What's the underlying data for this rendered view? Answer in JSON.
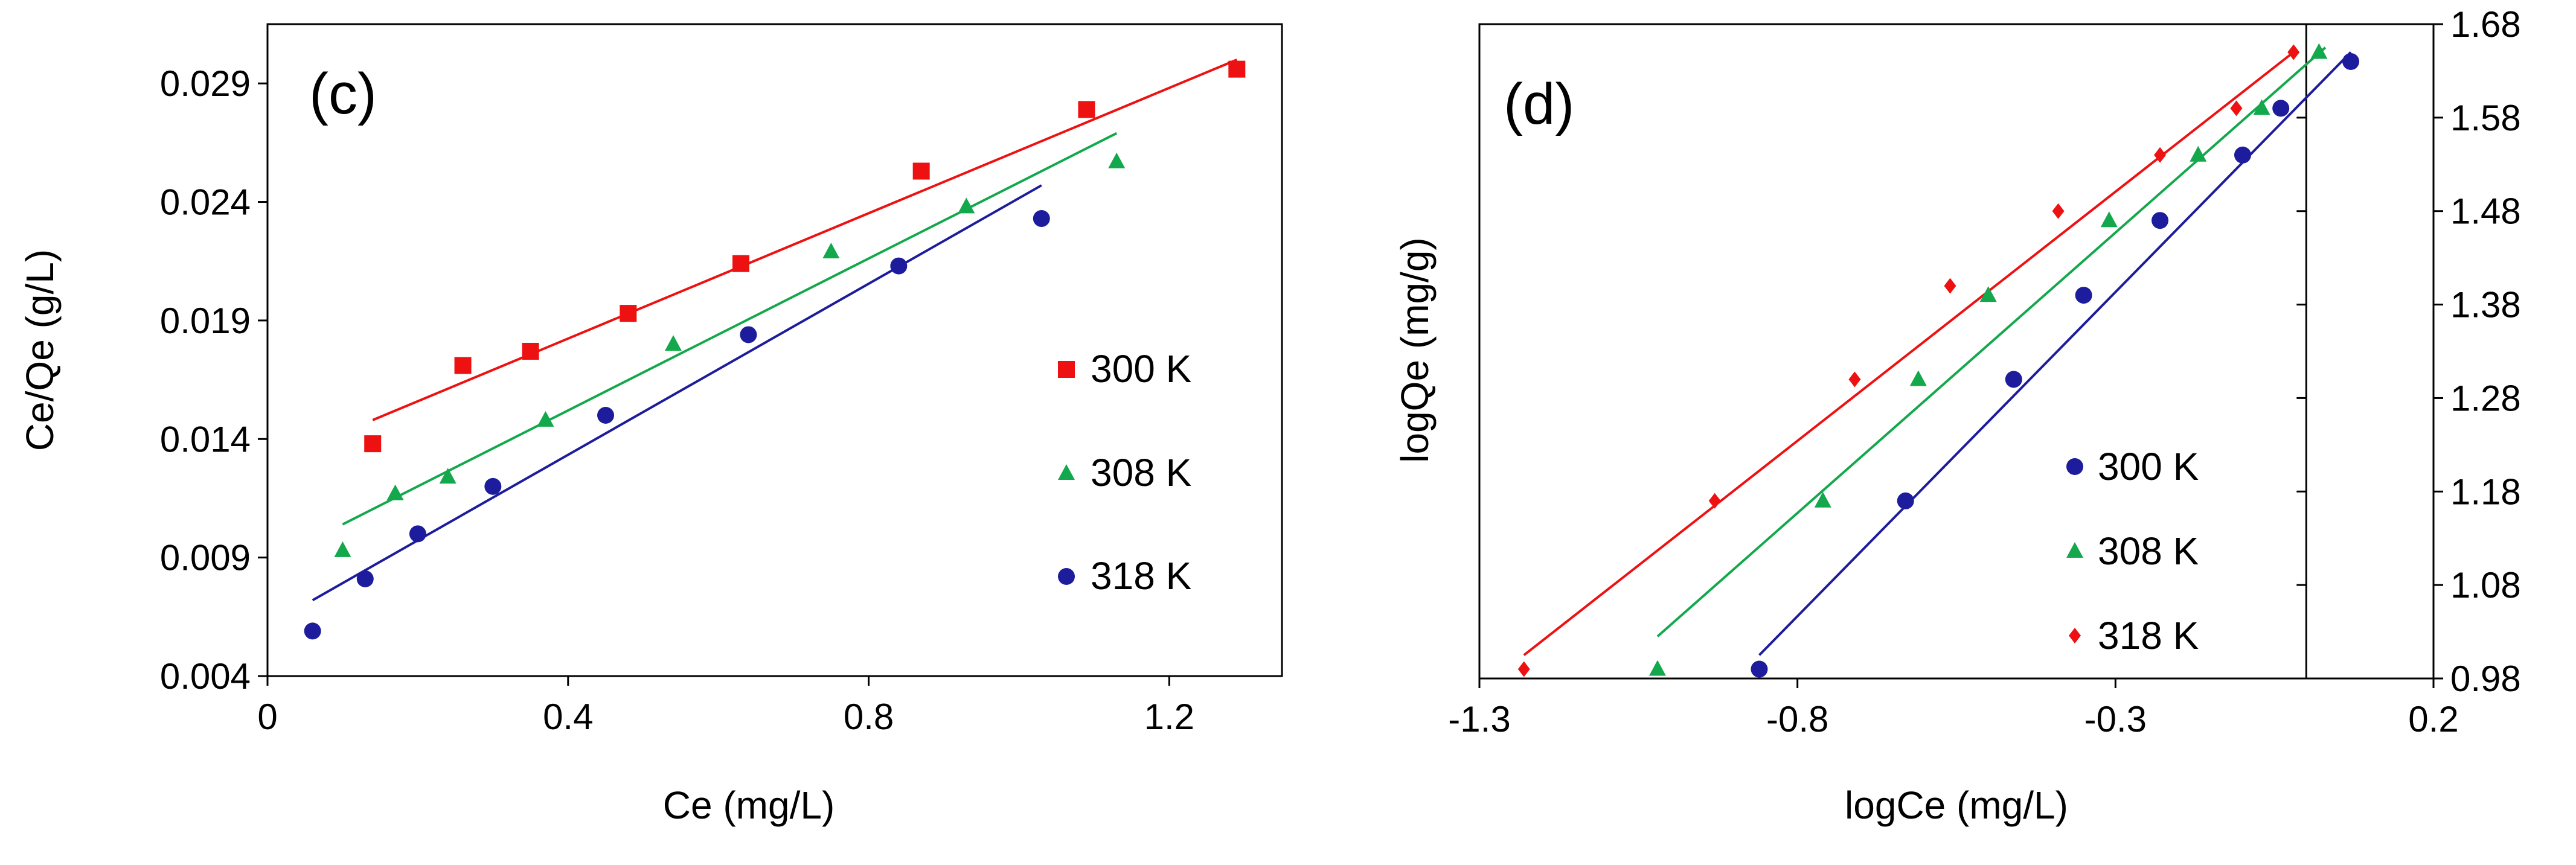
{
  "chart_data": [
    {
      "type": "scatter",
      "panel_label": "(c)",
      "xlabel": "Ce (mg/L)",
      "ylabel": "Ce/Qe (g/L)",
      "xlim": [
        0,
        1.35
      ],
      "ylim": [
        0.004,
        0.0315
      ],
      "x_ticks": [
        0,
        0.4,
        0.8,
        1.2
      ],
      "x_tick_labels": [
        "0",
        "0.4",
        "0.8",
        "1.2"
      ],
      "y_ticks": [
        0.004,
        0.009,
        0.014,
        0.019,
        0.024,
        0.029
      ],
      "y_tick_labels": [
        "0.004",
        "0.009",
        "0.014",
        "0.019",
        "0.024",
        "0.029"
      ],
      "legend_position": "right",
      "series": [
        {
          "name": "300 K",
          "color": "#ee1111",
          "marker": "square",
          "x": [
            0.14,
            0.26,
            0.35,
            0.48,
            0.63,
            0.87,
            1.09,
            1.29
          ],
          "y": [
            0.0138,
            0.0171,
            0.0177,
            0.0193,
            0.0214,
            0.0253,
            0.0279,
            0.0296
          ],
          "fit": [
            [
              0.14,
              0.0148
            ],
            [
              1.29,
              0.03
            ]
          ]
        },
        {
          "name": "308 K",
          "color": "#13a84c",
          "marker": "triangle",
          "x": [
            0.1,
            0.17,
            0.24,
            0.37,
            0.54,
            0.75,
            0.93,
            1.13
          ],
          "y": [
            0.0093,
            0.0117,
            0.0124,
            0.0148,
            0.018,
            0.0219,
            0.0238,
            0.0257
          ],
          "fit": [
            [
              0.1,
              0.0104
            ],
            [
              1.13,
              0.0269
            ]
          ]
        },
        {
          "name": "318 K",
          "color": "#1c1c9c",
          "marker": "circle",
          "x": [
            0.06,
            0.13,
            0.2,
            0.3,
            0.45,
            0.64,
            0.84,
            1.03
          ],
          "y": [
            0.0059,
            0.0081,
            0.01,
            0.012,
            0.015,
            0.0184,
            0.0213,
            0.0233
          ],
          "fit": [
            [
              0.06,
              0.0072
            ],
            [
              1.03,
              0.0247
            ]
          ]
        }
      ]
    },
    {
      "type": "scatter",
      "panel_label": "(d)",
      "xlabel": "logCe (mg/L)",
      "ylabel": "logQe (mg/g)",
      "xlim": [
        -1.3,
        0.2
      ],
      "ylim": [
        0.98,
        1.68
      ],
      "x_ticks": [
        -1.3,
        -0.8,
        -0.3,
        0.2
      ],
      "x_tick_labels": [
        "-1.3",
        "-0.8",
        "-0.3",
        "0.2"
      ],
      "y_ticks": [
        0.98,
        1.08,
        1.18,
        1.28,
        1.38,
        1.48,
        1.58,
        1.68
      ],
      "y_tick_labels": [
        "0.98",
        "1.08",
        "1.18",
        "1.28",
        "1.38",
        "1.48",
        "1.58",
        "1.68"
      ],
      "y_axis_side": "right",
      "y_axis_at_x": 0,
      "legend_position": "right",
      "series": [
        {
          "name": "300 K",
          "color": "#1c1c9c",
          "marker": "circle",
          "x": [
            -0.86,
            -0.63,
            -0.46,
            -0.35,
            -0.23,
            -0.1,
            -0.04,
            0.07
          ],
          "y": [
            0.99,
            1.17,
            1.3,
            1.39,
            1.47,
            1.54,
            1.59,
            1.64
          ],
          "fit": [
            [
              -0.86,
              1.005
            ],
            [
              0.07,
              1.65
            ]
          ]
        },
        {
          "name": "308 K",
          "color": "#13a84c",
          "marker": "triangle",
          "x": [
            -1.02,
            -0.76,
            -0.61,
            -0.5,
            -0.31,
            -0.17,
            -0.07,
            0.02
          ],
          "y": [
            0.99,
            1.17,
            1.3,
            1.39,
            1.47,
            1.54,
            1.59,
            1.65
          ],
          "fit": [
            [
              -1.02,
              1.025
            ],
            [
              0.03,
              1.655
            ]
          ]
        },
        {
          "name": "318 K",
          "color": "#ee1111",
          "marker": "diamond",
          "x": [
            -1.23,
            -0.93,
            -0.71,
            -0.56,
            -0.39,
            -0.23,
            -0.11,
            -0.02
          ],
          "y": [
            0.99,
            1.17,
            1.3,
            1.4,
            1.48,
            1.54,
            1.59,
            1.65
          ],
          "fit": [
            [
              -1.23,
              1.005
            ],
            [
              -0.02,
              1.65
            ]
          ]
        }
      ]
    }
  ]
}
